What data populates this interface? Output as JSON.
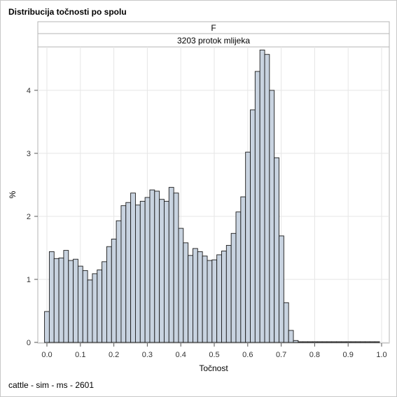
{
  "title": "Distribucija točnosti po spolu",
  "footnote": "cattle - sim - ms - 2601",
  "chart_data": {
    "type": "bar",
    "title": "Distribucija točnosti po spolu",
    "panel_headers": [
      "F",
      "3203 protok mlijeka"
    ],
    "xlabel": "Točnost",
    "ylabel": "%",
    "xlim": [
      0.0,
      1.0
    ],
    "ylim": [
      0,
      4.7
    ],
    "xticks": [
      "0.0",
      "0.1",
      "0.2",
      "0.3",
      "0.4",
      "0.5",
      "0.6",
      "0.7",
      "0.8",
      "0.9",
      "1.0"
    ],
    "yticks": [
      "0",
      "1",
      "2",
      "3",
      "4"
    ],
    "grid": true,
    "bin_width": 0.0143,
    "bin_start": -0.00715,
    "values": [
      0.49,
      1.44,
      1.33,
      1.34,
      1.46,
      1.3,
      1.32,
      1.21,
      1.14,
      0.99,
      1.09,
      1.15,
      1.28,
      1.52,
      1.64,
      1.93,
      2.17,
      2.22,
      2.37,
      2.18,
      2.24,
      2.3,
      2.42,
      2.4,
      2.27,
      2.24,
      2.46,
      2.37,
      1.81,
      1.58,
      1.38,
      1.49,
      1.44,
      1.37,
      1.3,
      1.31,
      1.39,
      1.45,
      1.54,
      1.73,
      2.07,
      2.31,
      3.02,
      3.69,
      4.3,
      4.64,
      4.57,
      4.0,
      2.93,
      1.69,
      0.63,
      0.19,
      0.03,
      0.01,
      0.01,
      0.01,
      0.01,
      0.01,
      0.01,
      0.01,
      0.01,
      0.01,
      0.01,
      0.01,
      0.01,
      0.01,
      0.01,
      0.01,
      0.01,
      0.01
    ],
    "colors": {
      "bar_fill": "#c8d3e0",
      "bar_stroke": "#1a1a1a",
      "grid": "#e6e6e6",
      "panel_header_bg": "#ffffff",
      "panel_border": "#b4b4b4"
    }
  }
}
